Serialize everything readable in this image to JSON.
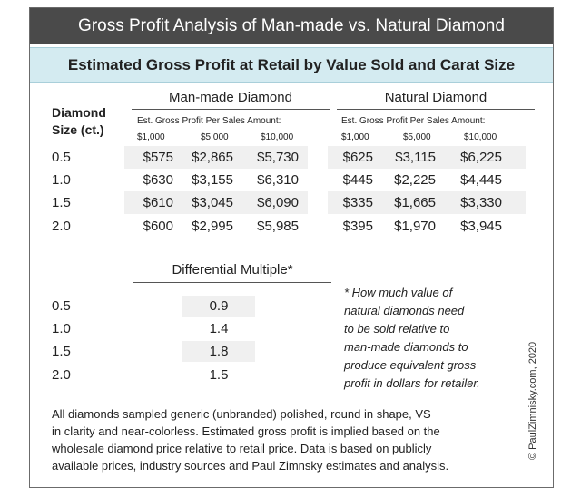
{
  "title": "Gross Profit Analysis of Man-made vs. Natural Diamond",
  "subtitle": "Estimated Gross Profit at Retail by Value Sold and Carat Size",
  "size_header": [
    "Diamond",
    "Size (ct.)"
  ],
  "groups": [
    {
      "name": "Man-made Diamond",
      "sub_header": "Est. Gross Profit Per Sales Amount:",
      "columns": [
        "$1,000",
        "$5,000",
        "$10,000"
      ]
    },
    {
      "name": "Natural Diamond",
      "sub_header": "Est. Gross Profit Per Sales Amount:",
      "columns": [
        "$1,000",
        "$5,000",
        "$10,000"
      ]
    }
  ],
  "rows": [
    {
      "size": "0.5",
      "manmade": [
        "$575",
        "$2,865",
        "$5,730"
      ],
      "natural": [
        "$625",
        "$3,115",
        "$6,225"
      ]
    },
    {
      "size": "1.0",
      "manmade": [
        "$630",
        "$3,155",
        "$6,310"
      ],
      "natural": [
        "$445",
        "$2,225",
        "$4,445"
      ]
    },
    {
      "size": "1.5",
      "manmade": [
        "$610",
        "$3,045",
        "$6,090"
      ],
      "natural": [
        "$335",
        "$1,665",
        "$3,330"
      ]
    },
    {
      "size": "2.0",
      "manmade": [
        "$600",
        "$2,995",
        "$5,985"
      ],
      "natural": [
        "$395",
        "$1,970",
        "$3,945"
      ]
    }
  ],
  "differential": {
    "title": "Differential Multiple*",
    "rows": [
      {
        "size": "0.5",
        "value": "0.9"
      },
      {
        "size": "1.0",
        "value": "1.4"
      },
      {
        "size": "1.5",
        "value": "1.8"
      },
      {
        "size": "2.0",
        "value": "1.5"
      }
    ]
  },
  "note_lines": [
    "* How much value of",
    "natural diamonds need",
    "to be sold relative to",
    "man-made diamonds to",
    "produce equivalent gross",
    "profit in dollars for retailer."
  ],
  "footer_lines": [
    "All diamonds sampled generic (unbranded) polished, round in shape, VS",
    "in clarity and near-colorless. Estimated gross profit is implied based on the",
    "wholesale diamond price relative to retail price. Data is based on publicly",
    "available prices, industry sources and Paul Zimnsky estimates and analysis."
  ],
  "copyright": "© PaulZimnisky.com, 2020"
}
